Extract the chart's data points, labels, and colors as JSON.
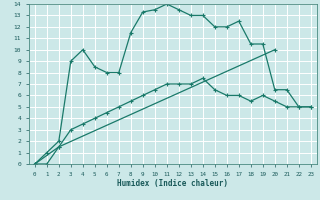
{
  "xlabel": "Humidex (Indice chaleur)",
  "bg_color": "#cce8e8",
  "grid_color": "#ffffff",
  "line_color": "#1a7a6a",
  "xlim": [
    -0.5,
    23.5
  ],
  "ylim": [
    0,
    14
  ],
  "xticks": [
    0,
    1,
    2,
    3,
    4,
    5,
    6,
    7,
    8,
    9,
    10,
    11,
    12,
    13,
    14,
    15,
    16,
    17,
    18,
    19,
    20,
    21,
    22,
    23
  ],
  "yticks": [
    0,
    1,
    2,
    3,
    4,
    5,
    6,
    7,
    8,
    9,
    10,
    11,
    12,
    13,
    14
  ],
  "line1_x": [
    0,
    1,
    2,
    3,
    4,
    5,
    6,
    7,
    8,
    9,
    10,
    11,
    12,
    13,
    14,
    15,
    16,
    17,
    18,
    19,
    20,
    21,
    22,
    23
  ],
  "line1_y": [
    0,
    1,
    2,
    9,
    10,
    8.5,
    8,
    8,
    11.5,
    13.3,
    13.5,
    14,
    13.5,
    13,
    13,
    12,
    12,
    12.5,
    10.5,
    10.5,
    6.5,
    6.5,
    5,
    5
  ],
  "line2_x": [
    0,
    1,
    2,
    3,
    4,
    5,
    6,
    7,
    8,
    9,
    10,
    11,
    12,
    13,
    14,
    15,
    16,
    17,
    18,
    19,
    20,
    21,
    22,
    23
  ],
  "line2_y": [
    0,
    0,
    1.5,
    3,
    3.5,
    4.0,
    4.5,
    5.0,
    5.5,
    6.0,
    6.5,
    7.0,
    7.0,
    7.0,
    7.5,
    6.5,
    6.0,
    6.0,
    5.5,
    6.0,
    5.5,
    5.0,
    5.0,
    5.0
  ],
  "line3_x": [
    0,
    2,
    20
  ],
  "line3_y": [
    0,
    1.5,
    10.0
  ]
}
